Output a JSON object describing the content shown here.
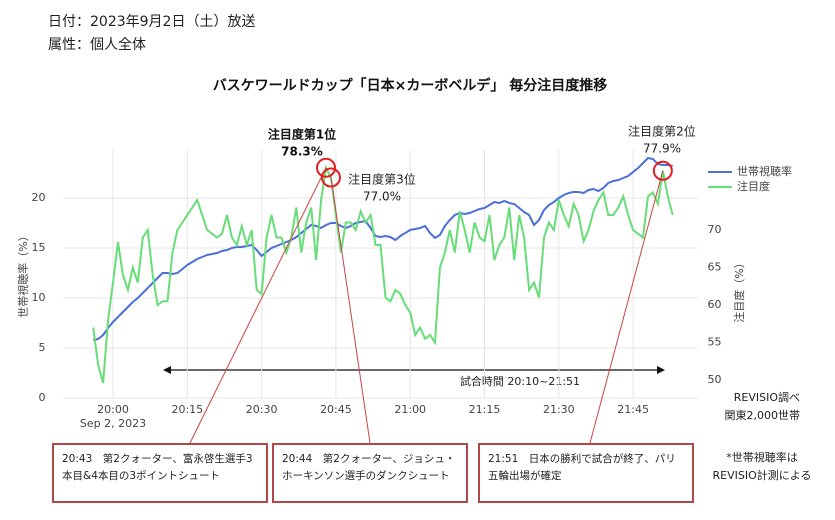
{
  "header": {
    "date": "日付：2023年9月2日（土）放送",
    "attribute": "属性：個人全体"
  },
  "chart_data": {
    "type": "line",
    "title": "バスケワールドカップ「日本×カーボベルデ」 毎分注目度推移",
    "ylabel": "世帯視聴率（%）",
    "y2label": "注目度（%）",
    "x": [
      "19:56",
      "19:57",
      "19:58",
      "19:59",
      "20:00",
      "20:01",
      "20:02",
      "20:03",
      "20:04",
      "20:05",
      "20:06",
      "20:07",
      "20:08",
      "20:09",
      "20:10",
      "20:11",
      "20:12",
      "20:13",
      "20:14",
      "20:15",
      "20:16",
      "20:17",
      "20:18",
      "20:19",
      "20:20",
      "20:21",
      "20:22",
      "20:23",
      "20:24",
      "20:25",
      "20:26",
      "20:27",
      "20:28",
      "20:29",
      "20:30",
      "20:31",
      "20:32",
      "20:33",
      "20:34",
      "20:35",
      "20:36",
      "20:37",
      "20:38",
      "20:39",
      "20:40",
      "20:41",
      "20:42",
      "20:43",
      "20:44",
      "20:45",
      "20:46",
      "20:47",
      "20:48",
      "20:49",
      "20:50",
      "20:51",
      "20:52",
      "20:53",
      "20:54",
      "20:55",
      "20:56",
      "20:57",
      "20:58",
      "20:59",
      "21:00",
      "21:01",
      "21:02",
      "21:03",
      "21:04",
      "21:05",
      "21:06",
      "21:07",
      "21:08",
      "21:09",
      "21:10",
      "21:11",
      "21:12",
      "21:13",
      "21:14",
      "21:15",
      "21:16",
      "21:17",
      "21:18",
      "21:19",
      "21:20",
      "21:21",
      "21:22",
      "21:23",
      "21:24",
      "21:25",
      "21:26",
      "21:27",
      "21:28",
      "21:29",
      "21:30",
      "21:31",
      "21:32",
      "21:33",
      "21:34",
      "21:35",
      "21:36",
      "21:37",
      "21:38",
      "21:39",
      "21:40",
      "21:41",
      "21:42",
      "21:43",
      "21:44",
      "21:45",
      "21:46",
      "21:47",
      "21:48",
      "21:49",
      "21:50",
      "21:51",
      "21:52",
      "21:53"
    ],
    "xdate": "Sep 2, 2023",
    "series": [
      {
        "name": "世帯視聴率",
        "color": "#4a6fd8",
        "axis": "y",
        "values": [
          5.8,
          5.9,
          6.3,
          7.0,
          7.6,
          8.1,
          8.6,
          9.1,
          9.6,
          10.0,
          10.5,
          11.0,
          11.5,
          12.0,
          12.5,
          12.5,
          12.4,
          12.5,
          12.9,
          13.3,
          13.6,
          13.9,
          14.1,
          14.3,
          14.4,
          14.5,
          14.7,
          14.8,
          15.0,
          15.1,
          15.1,
          15.2,
          15.3,
          14.8,
          14.2,
          14.6,
          15.0,
          15.2,
          15.4,
          15.6,
          15.8,
          16.1,
          16.5,
          16.9,
          17.3,
          17.2,
          17.0,
          17.3,
          17.5,
          17.5,
          17.2,
          17.0,
          17.2,
          17.5,
          17.6,
          17.7,
          17.0,
          16.2,
          16.1,
          16.2,
          16.1,
          15.8,
          16.2,
          16.5,
          16.8,
          16.9,
          17.0,
          17.2,
          16.5,
          16.0,
          16.3,
          17.2,
          17.8,
          18.3,
          18.5,
          18.4,
          18.5,
          18.7,
          18.9,
          19.0,
          19.3,
          19.6,
          19.5,
          19.7,
          19.5,
          19.4,
          19.0,
          18.6,
          18.3,
          17.3,
          17.8,
          18.8,
          19.3,
          19.6,
          20.0,
          20.3,
          20.5,
          20.6,
          20.6,
          20.5,
          20.8,
          20.9,
          20.7,
          21.0,
          21.5,
          21.7,
          21.8,
          22.0,
          22.2,
          22.6,
          23.0,
          23.5,
          24.0,
          23.9,
          23.4,
          23.3,
          23.3,
          23.2
        ]
      },
      {
        "name": "注目度",
        "color": "#66dd77",
        "axis": "y2",
        "values": [
          57,
          52,
          49.6,
          58,
          63,
          68.4,
          64,
          62,
          65,
          63,
          69,
          70,
          64,
          60,
          60.5,
          60.5,
          67,
          70,
          71,
          72,
          73,
          74,
          72,
          70,
          69.5,
          69,
          69.5,
          72,
          69,
          68,
          70.5,
          68,
          70,
          62,
          61.5,
          69,
          72,
          69,
          69,
          67,
          69,
          73,
          67,
          71,
          73,
          66,
          74,
          78.3,
          77.0,
          72,
          67,
          71,
          71,
          70,
          72.5,
          71,
          72,
          68,
          68,
          61,
          60.5,
          62,
          61.5,
          60,
          59,
          56,
          57,
          55.5,
          56,
          55,
          65,
          67,
          70,
          67,
          72.5,
          70,
          67,
          71,
          69,
          68.5,
          72,
          66,
          68,
          69,
          73,
          66,
          72,
          69,
          62,
          63,
          61,
          69,
          71,
          70,
          74,
          72,
          70.5,
          73.5,
          72,
          68.5,
          70,
          72.5,
          74,
          75,
          72,
          72,
          73,
          74.5,
          72,
          70,
          69.5,
          69,
          74.5,
          75,
          73.5,
          77.9,
          74.5,
          72
        ]
      }
    ],
    "xlim": [
      "19:50",
      "21:58"
    ],
    "xticks": [
      "20:00",
      "20:15",
      "20:30",
      "20:45",
      "21:00",
      "21:15",
      "21:30",
      "21:45"
    ],
    "ylim": [
      0,
      24.8
    ],
    "yticks": [
      0,
      5,
      10,
      15,
      20
    ],
    "y2lim": [
      47.6,
      80.67
    ],
    "y2ticks": [
      50,
      55,
      60,
      65,
      70
    ],
    "grid": true,
    "legend": "upper right",
    "annotations": [
      {
        "x": "20:43",
        "title": "注目度第1位",
        "label": "78.3%"
      },
      {
        "x": "20:44",
        "title": "注目度第3位",
        "label": "77.0%"
      },
      {
        "x": "21:51",
        "title": "注目度第2位",
        "label": "77.9%"
      }
    ],
    "match_label": "試合時間 20:10~21:51",
    "source": [
      "REVISIO調べ",
      "関東2,000世帯"
    ],
    "notes": [
      "20:43　第2クォーター、富永啓生選手3本目&4本目の3ポイントシュート",
      "20:44　第2クォーター、ジョシュ・ホーキンソン選手のダンクシュート",
      "21:51　日本の勝利で試合が終了、パリ五輪出場が確定"
    ],
    "footnote": [
      "*世帯視聴率は",
      "REVISIO計測による"
    ]
  }
}
